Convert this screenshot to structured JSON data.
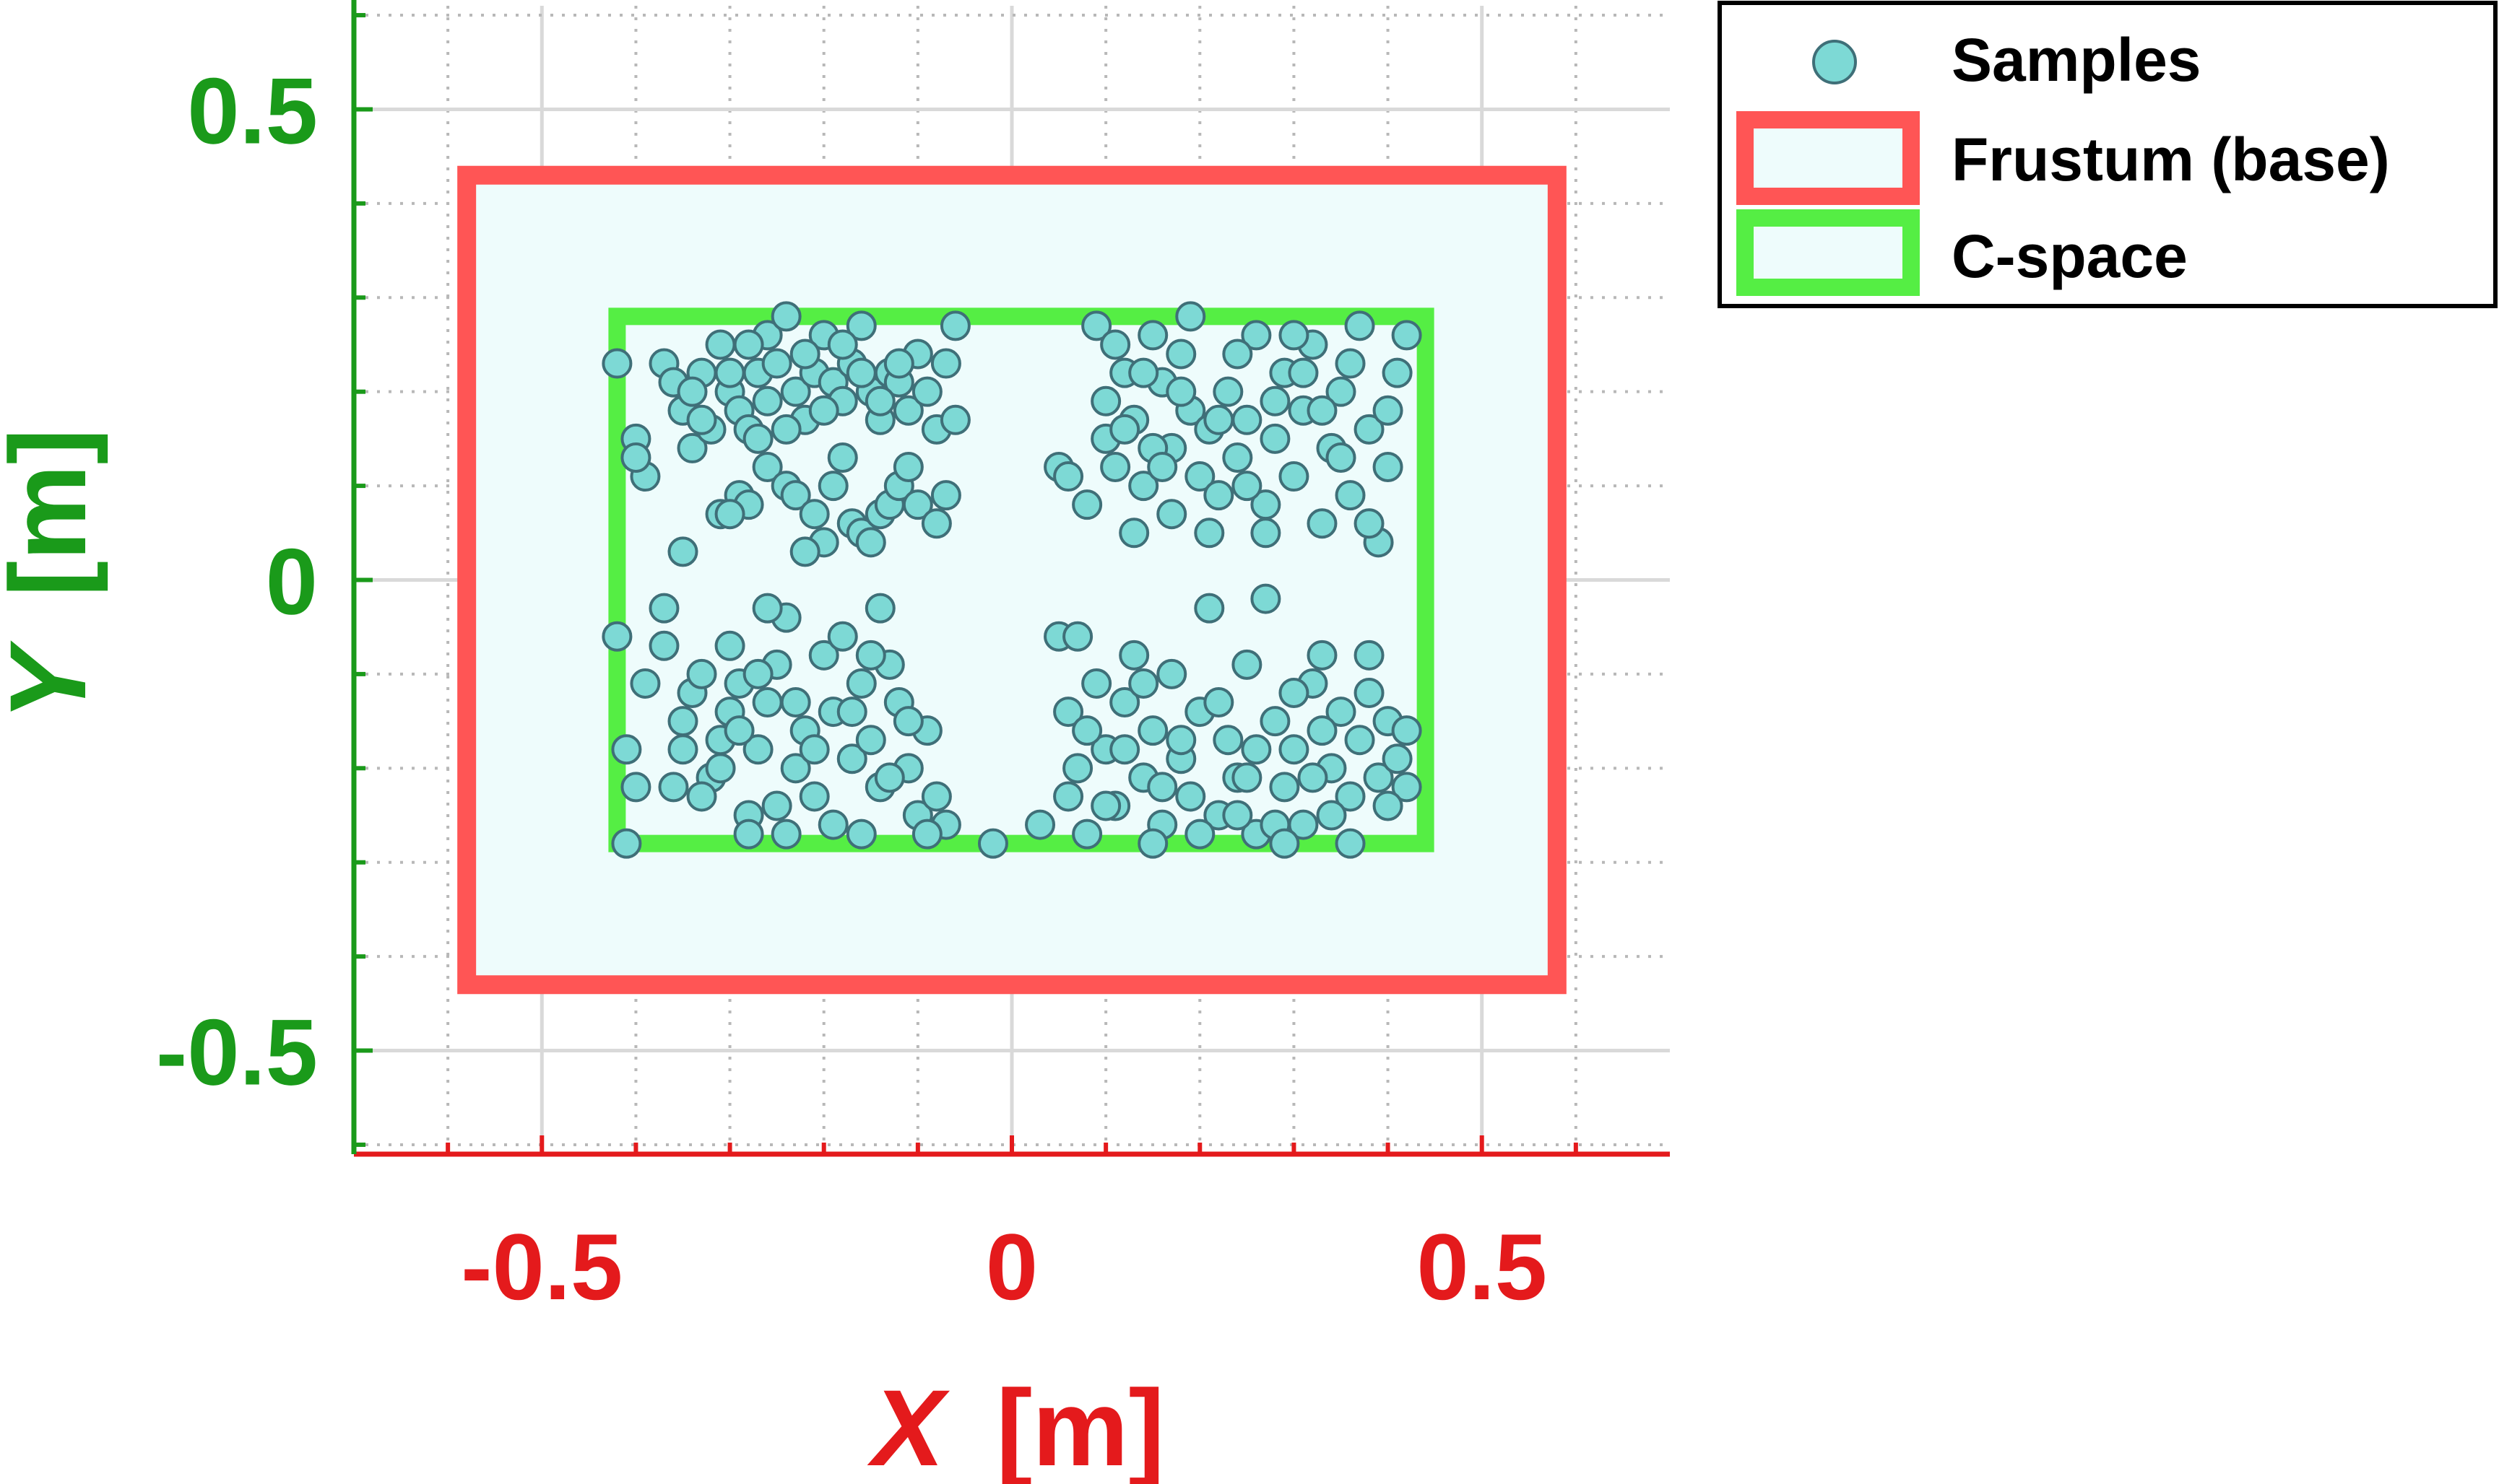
{
  "colors": {
    "x_axis": "#e41a1c",
    "y_axis": "#1a9a1a",
    "grid": "#d9d9d9",
    "frustum": "#ff5555",
    "cspace": "#55ee44",
    "region_fill": "#eefcfc",
    "marker_fill": "#7dd9d5",
    "marker_edge": "#3f6f78",
    "legend_border": "#000000"
  },
  "chart_data": {
    "type": "scatter",
    "xlabel_var": "X",
    "xlabel_unit": "[m]",
    "ylabel_var": "Y",
    "ylabel_unit": "[m]",
    "xlim": [
      -0.7,
      0.7
    ],
    "ylim": [
      -0.61,
      0.61
    ],
    "xticks": [
      {
        "value": -0.5,
        "label": "-0.5"
      },
      {
        "value": 0,
        "label": "0"
      },
      {
        "value": 0.5,
        "label": "0.5"
      }
    ],
    "yticks": [
      {
        "value": 0.5,
        "label": "0.5"
      },
      {
        "value": 0,
        "label": "0"
      },
      {
        "value": -0.5,
        "label": "-0.5"
      }
    ],
    "minor_step": 0.1,
    "grid": true,
    "legend_position": "outside-top-right",
    "legend": [
      "Samples",
      "Frustum (base)",
      "C-space"
    ],
    "frustum": {
      "x": [
        -0.58,
        0.58
      ],
      "y": [
        -0.43,
        0.43
      ]
    },
    "cspace": {
      "x": [
        -0.42,
        0.44
      ],
      "y": [
        -0.28,
        0.28
      ]
    },
    "samples": [
      [
        -0.42,
        0.23
      ],
      [
        -0.4,
        0.15
      ],
      [
        -0.39,
        0.11
      ],
      [
        -0.4,
        0.13
      ],
      [
        -0.37,
        0.23
      ],
      [
        -0.36,
        0.21
      ],
      [
        -0.35,
        0.18
      ],
      [
        -0.34,
        0.14
      ],
      [
        -0.33,
        0.22
      ],
      [
        -0.32,
        0.16
      ],
      [
        -0.31,
        0.25
      ],
      [
        -0.3,
        0.2
      ],
      [
        -0.29,
        0.18
      ],
      [
        -0.28,
        0.16
      ],
      [
        -0.27,
        0.22
      ],
      [
        -0.26,
        0.26
      ],
      [
        -0.25,
        0.23
      ],
      [
        -0.24,
        0.28
      ],
      [
        -0.23,
        0.2
      ],
      [
        -0.22,
        0.17
      ],
      [
        -0.21,
        0.22
      ],
      [
        -0.2,
        0.26
      ],
      [
        -0.19,
        0.21
      ],
      [
        -0.18,
        0.19
      ],
      [
        -0.17,
        0.23
      ],
      [
        -0.16,
        0.27
      ],
      [
        -0.15,
        0.2
      ],
      [
        -0.14,
        0.17
      ],
      [
        -0.13,
        0.22
      ],
      [
        -0.12,
        0.21
      ],
      [
        -0.11,
        0.18
      ],
      [
        -0.1,
        0.24
      ],
      [
        -0.09,
        0.2
      ],
      [
        -0.08,
        0.16
      ],
      [
        -0.07,
        0.23
      ],
      [
        -0.06,
        0.27
      ],
      [
        -0.06,
        0.17
      ],
      [
        -0.34,
        0.2
      ],
      [
        -0.33,
        0.17
      ],
      [
        -0.3,
        0.22
      ],
      [
        -0.28,
        0.25
      ],
      [
        -0.26,
        0.19
      ],
      [
        -0.24,
        0.16
      ],
      [
        -0.22,
        0.24
      ],
      [
        -0.2,
        0.18
      ],
      [
        -0.18,
        0.25
      ],
      [
        -0.16,
        0.22
      ],
      [
        -0.14,
        0.19
      ],
      [
        -0.12,
        0.23
      ],
      [
        -0.35,
        0.03
      ],
      [
        -0.31,
        0.07
      ],
      [
        -0.29,
        0.09
      ],
      [
        -0.28,
        0.08
      ],
      [
        -0.26,
        0.12
      ],
      [
        -0.24,
        0.1
      ],
      [
        -0.23,
        0.09
      ],
      [
        -0.21,
        0.07
      ],
      [
        -0.2,
        0.04
      ],
      [
        -0.19,
        0.1
      ],
      [
        -0.18,
        0.13
      ],
      [
        -0.17,
        0.06
      ],
      [
        -0.16,
        0.05
      ],
      [
        -0.14,
        0.07
      ],
      [
        -0.13,
        0.08
      ],
      [
        -0.12,
        0.1
      ],
      [
        -0.11,
        0.12
      ],
      [
        -0.1,
        0.08
      ],
      [
        -0.08,
        0.06
      ],
      [
        -0.07,
        0.09
      ],
      [
        -0.3,
        0.07
      ],
      [
        -0.27,
        0.15
      ],
      [
        -0.22,
        0.03
      ],
      [
        -0.15,
        0.04
      ],
      [
        -0.42,
        -0.06
      ],
      [
        -0.41,
        -0.18
      ],
      [
        -0.4,
        -0.22
      ],
      [
        -0.39,
        -0.11
      ],
      [
        -0.37,
        -0.03
      ],
      [
        -0.37,
        -0.07
      ],
      [
        -0.36,
        -0.22
      ],
      [
        -0.35,
        -0.15
      ],
      [
        -0.34,
        -0.12
      ],
      [
        -0.33,
        -0.1
      ],
      [
        -0.32,
        -0.21
      ],
      [
        -0.31,
        -0.17
      ],
      [
        -0.3,
        -0.14
      ],
      [
        -0.3,
        -0.07
      ],
      [
        -0.29,
        -0.11
      ],
      [
        -0.28,
        -0.25
      ],
      [
        -0.27,
        -0.18
      ],
      [
        -0.26,
        -0.13
      ],
      [
        -0.25,
        -0.09
      ],
      [
        -0.24,
        -0.04
      ],
      [
        -0.23,
        -0.2
      ],
      [
        -0.22,
        -0.16
      ],
      [
        -0.21,
        -0.23
      ],
      [
        -0.2,
        -0.08
      ],
      [
        -0.19,
        -0.14
      ],
      [
        -0.18,
        -0.06
      ],
      [
        -0.17,
        -0.19
      ],
      [
        -0.16,
        -0.11
      ],
      [
        -0.15,
        -0.17
      ],
      [
        -0.14,
        -0.22
      ],
      [
        -0.13,
        -0.09
      ],
      [
        -0.12,
        -0.13
      ],
      [
        -0.11,
        -0.2
      ],
      [
        -0.1,
        -0.25
      ],
      [
        -0.09,
        -0.16
      ],
      [
        -0.08,
        -0.23
      ],
      [
        -0.07,
        -0.26
      ],
      [
        -0.35,
        -0.18
      ],
      [
        -0.33,
        -0.23
      ],
      [
        -0.31,
        -0.2
      ],
      [
        -0.29,
        -0.16
      ],
      [
        -0.27,
        -0.1
      ],
      [
        -0.25,
        -0.24
      ],
      [
        -0.23,
        -0.13
      ],
      [
        -0.21,
        -0.18
      ],
      [
        -0.19,
        -0.26
      ],
      [
        -0.17,
        -0.14
      ],
      [
        -0.15,
        -0.08
      ],
      [
        -0.13,
        -0.21
      ],
      [
        -0.11,
        -0.15
      ],
      [
        -0.09,
        -0.27
      ],
      [
        -0.28,
        -0.27
      ],
      [
        -0.24,
        -0.27
      ],
      [
        -0.16,
        -0.27
      ],
      [
        -0.41,
        -0.28
      ],
      [
        -0.26,
        -0.03
      ],
      [
        -0.14,
        -0.03
      ],
      [
        0.09,
        0.27
      ],
      [
        0.1,
        0.19
      ],
      [
        0.1,
        0.15
      ],
      [
        0.11,
        0.12
      ],
      [
        0.12,
        0.22
      ],
      [
        0.13,
        0.17
      ],
      [
        0.14,
        0.1
      ],
      [
        0.15,
        0.26
      ],
      [
        0.16,
        0.21
      ],
      [
        0.17,
        0.14
      ],
      [
        0.18,
        0.24
      ],
      [
        0.19,
        0.18
      ],
      [
        0.2,
        0.11
      ],
      [
        0.21,
        0.16
      ],
      [
        0.22,
        0.09
      ],
      [
        0.23,
        0.2
      ],
      [
        0.24,
        0.13
      ],
      [
        0.25,
        0.17
      ],
      [
        0.26,
        0.26
      ],
      [
        0.27,
        0.08
      ],
      [
        0.28,
        0.15
      ],
      [
        0.29,
        0.22
      ],
      [
        0.3,
        0.11
      ],
      [
        0.31,
        0.18
      ],
      [
        0.32,
        0.25
      ],
      [
        0.33,
        0.06
      ],
      [
        0.34,
        0.14
      ],
      [
        0.35,
        0.2
      ],
      [
        0.36,
        0.09
      ],
      [
        0.37,
        0.27
      ],
      [
        0.38,
        0.16
      ],
      [
        0.39,
        0.04
      ],
      [
        0.4,
        0.12
      ],
      [
        0.41,
        0.22
      ],
      [
        0.42,
        0.26
      ],
      [
        0.05,
        0.12
      ],
      [
        0.06,
        0.11
      ],
      [
        0.08,
        0.08
      ],
      [
        0.11,
        0.25
      ],
      [
        0.13,
        0.05
      ],
      [
        0.15,
        0.14
      ],
      [
        0.17,
        0.07
      ],
      [
        0.19,
        0.28
      ],
      [
        0.21,
        0.05
      ],
      [
        0.24,
        0.24
      ],
      [
        0.27,
        0.05
      ],
      [
        0.3,
        0.26
      ],
      [
        0.33,
        0.18
      ],
      [
        0.36,
        0.23
      ],
      [
        0.38,
        0.06
      ],
      [
        0.4,
        0.18
      ],
      [
        0.12,
        0.16
      ],
      [
        0.18,
        0.2
      ],
      [
        0.25,
        0.1
      ],
      [
        0.31,
        0.22
      ],
      [
        0.35,
        0.13
      ],
      [
        0.14,
        0.22
      ],
      [
        0.22,
        0.17
      ],
      [
        0.28,
        0.19
      ],
      [
        0.16,
        0.12
      ],
      [
        0.05,
        -0.06
      ],
      [
        0.06,
        -0.14
      ],
      [
        0.07,
        -0.2
      ],
      [
        0.08,
        -0.27
      ],
      [
        0.09,
        -0.11
      ],
      [
        0.1,
        -0.18
      ],
      [
        0.11,
        -0.24
      ],
      [
        0.12,
        -0.13
      ],
      [
        0.13,
        -0.08
      ],
      [
        0.14,
        -0.21
      ],
      [
        0.15,
        -0.16
      ],
      [
        0.16,
        -0.26
      ],
      [
        0.17,
        -0.1
      ],
      [
        0.18,
        -0.19
      ],
      [
        0.19,
        -0.23
      ],
      [
        0.2,
        -0.14
      ],
      [
        0.21,
        -0.03
      ],
      [
        0.22,
        -0.25
      ],
      [
        0.23,
        -0.17
      ],
      [
        0.24,
        -0.21
      ],
      [
        0.25,
        -0.09
      ],
      [
        0.26,
        -0.27
      ],
      [
        0.27,
        -0.02
      ],
      [
        0.28,
        -0.15
      ],
      [
        0.29,
        -0.22
      ],
      [
        0.3,
        -0.18
      ],
      [
        0.31,
        -0.26
      ],
      [
        0.32,
        -0.11
      ],
      [
        0.33,
        -0.08
      ],
      [
        0.34,
        -0.2
      ],
      [
        0.35,
        -0.14
      ],
      [
        0.36,
        -0.23
      ],
      [
        0.37,
        -0.17
      ],
      [
        0.38,
        -0.08
      ],
      [
        0.39,
        -0.21
      ],
      [
        0.4,
        -0.15
      ],
      [
        0.41,
        -0.19
      ],
      [
        0.42,
        -0.22
      ],
      [
        -0.02,
        -0.28
      ],
      [
        0.03,
        -0.26
      ],
      [
        0.06,
        -0.23
      ],
      [
        0.08,
        -0.16
      ],
      [
        0.1,
        -0.24
      ],
      [
        0.12,
        -0.18
      ],
      [
        0.14,
        -0.11
      ],
      [
        0.16,
        -0.22
      ],
      [
        0.18,
        -0.17
      ],
      [
        0.2,
        -0.27
      ],
      [
        0.22,
        -0.13
      ],
      [
        0.24,
        -0.25
      ],
      [
        0.26,
        -0.18
      ],
      [
        0.28,
        -0.26
      ],
      [
        0.3,
        -0.12
      ],
      [
        0.32,
        -0.21
      ],
      [
        0.34,
        -0.25
      ],
      [
        0.36,
        -0.28
      ],
      [
        0.38,
        -0.12
      ],
      [
        0.4,
        -0.24
      ],
      [
        0.42,
        -0.16
      ],
      [
        0.07,
        -0.06
      ],
      [
        0.15,
        -0.28
      ],
      [
        0.25,
        -0.21
      ],
      [
        0.33,
        -0.16
      ],
      [
        0.29,
        -0.28
      ]
    ]
  }
}
